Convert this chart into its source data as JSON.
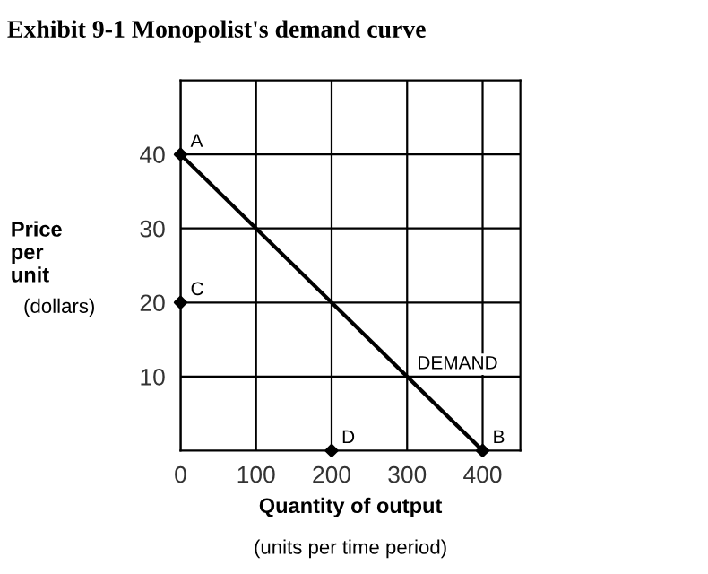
{
  "chart_data": {
    "type": "line",
    "title": "Exhibit 9-1 Monopolist's demand curve",
    "xlabel": "Quantity of output",
    "ylabel": "Price\nper\nunit",
    "series": [
      {
        "color": "#000000",
        "x": [
          0,
          400
        ],
        "values": [
          40,
          0
        ],
        "marker": "none",
        "line_style": "solid"
      },
      {
        "type": "scatter",
        "color": "#000000",
        "x": [
          0,
          0,
          200,
          400
        ],
        "values": [
          40,
          20,
          0,
          0
        ],
        "marker": "diamond"
      }
    ],
    "xlim": [
      0,
      450
    ],
    "ylim": [
      0,
      50
    ],
    "xticks": [
      0,
      100,
      200,
      300,
      400
    ],
    "yticks": [
      10,
      20,
      30,
      40
    ],
    "grid": true,
    "annotations": [
      {
        "text": "A",
        "x": 0,
        "y": 40
      },
      {
        "text": "C",
        "x": 0,
        "y": 20
      },
      {
        "text": "D",
        "x": 200,
        "y": 0
      },
      {
        "text": "B",
        "x": 400,
        "y": 0
      },
      {
        "text": "DEMAND",
        "x": 300,
        "y": 10
      },
      "(dollars)",
      "(units per time period)"
    ]
  }
}
